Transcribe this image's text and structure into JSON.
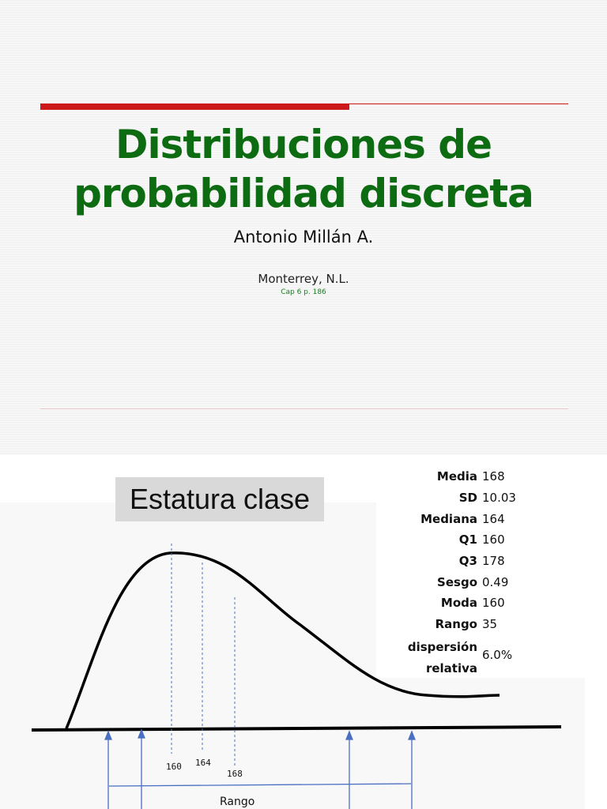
{
  "slide1": {
    "title_line1": "Distribuciones de",
    "title_line2": "probabilidad discreta",
    "author": "Antonio Millán A.",
    "place": "Monterrey, N.L.",
    "cap": "Cap 6 p. 186",
    "colors": {
      "title": "#0d6b12",
      "accent_bar": "#cc1a1a"
    }
  },
  "slide2": {
    "heading": "Estatura clase",
    "stats": [
      {
        "name": "Media",
        "value": "168"
      },
      {
        "name": "SD",
        "value": "10.03"
      },
      {
        "name": "Mediana",
        "value": "164"
      },
      {
        "name": "Q1",
        "value": "160"
      },
      {
        "name": "Q3",
        "value": "178"
      },
      {
        "name": "Sesgo",
        "value": "0.49"
      },
      {
        "name": "Moda",
        "value": "160"
      },
      {
        "name": "Rango",
        "value": "35"
      }
    ],
    "dispersion": {
      "name_line1": "dispersión",
      "name_line2": "relativa",
      "value": "6.0%"
    },
    "axis_labels": {
      "moda": "160",
      "mediana": "164",
      "media": "168"
    },
    "range_label": "Rango"
  }
}
